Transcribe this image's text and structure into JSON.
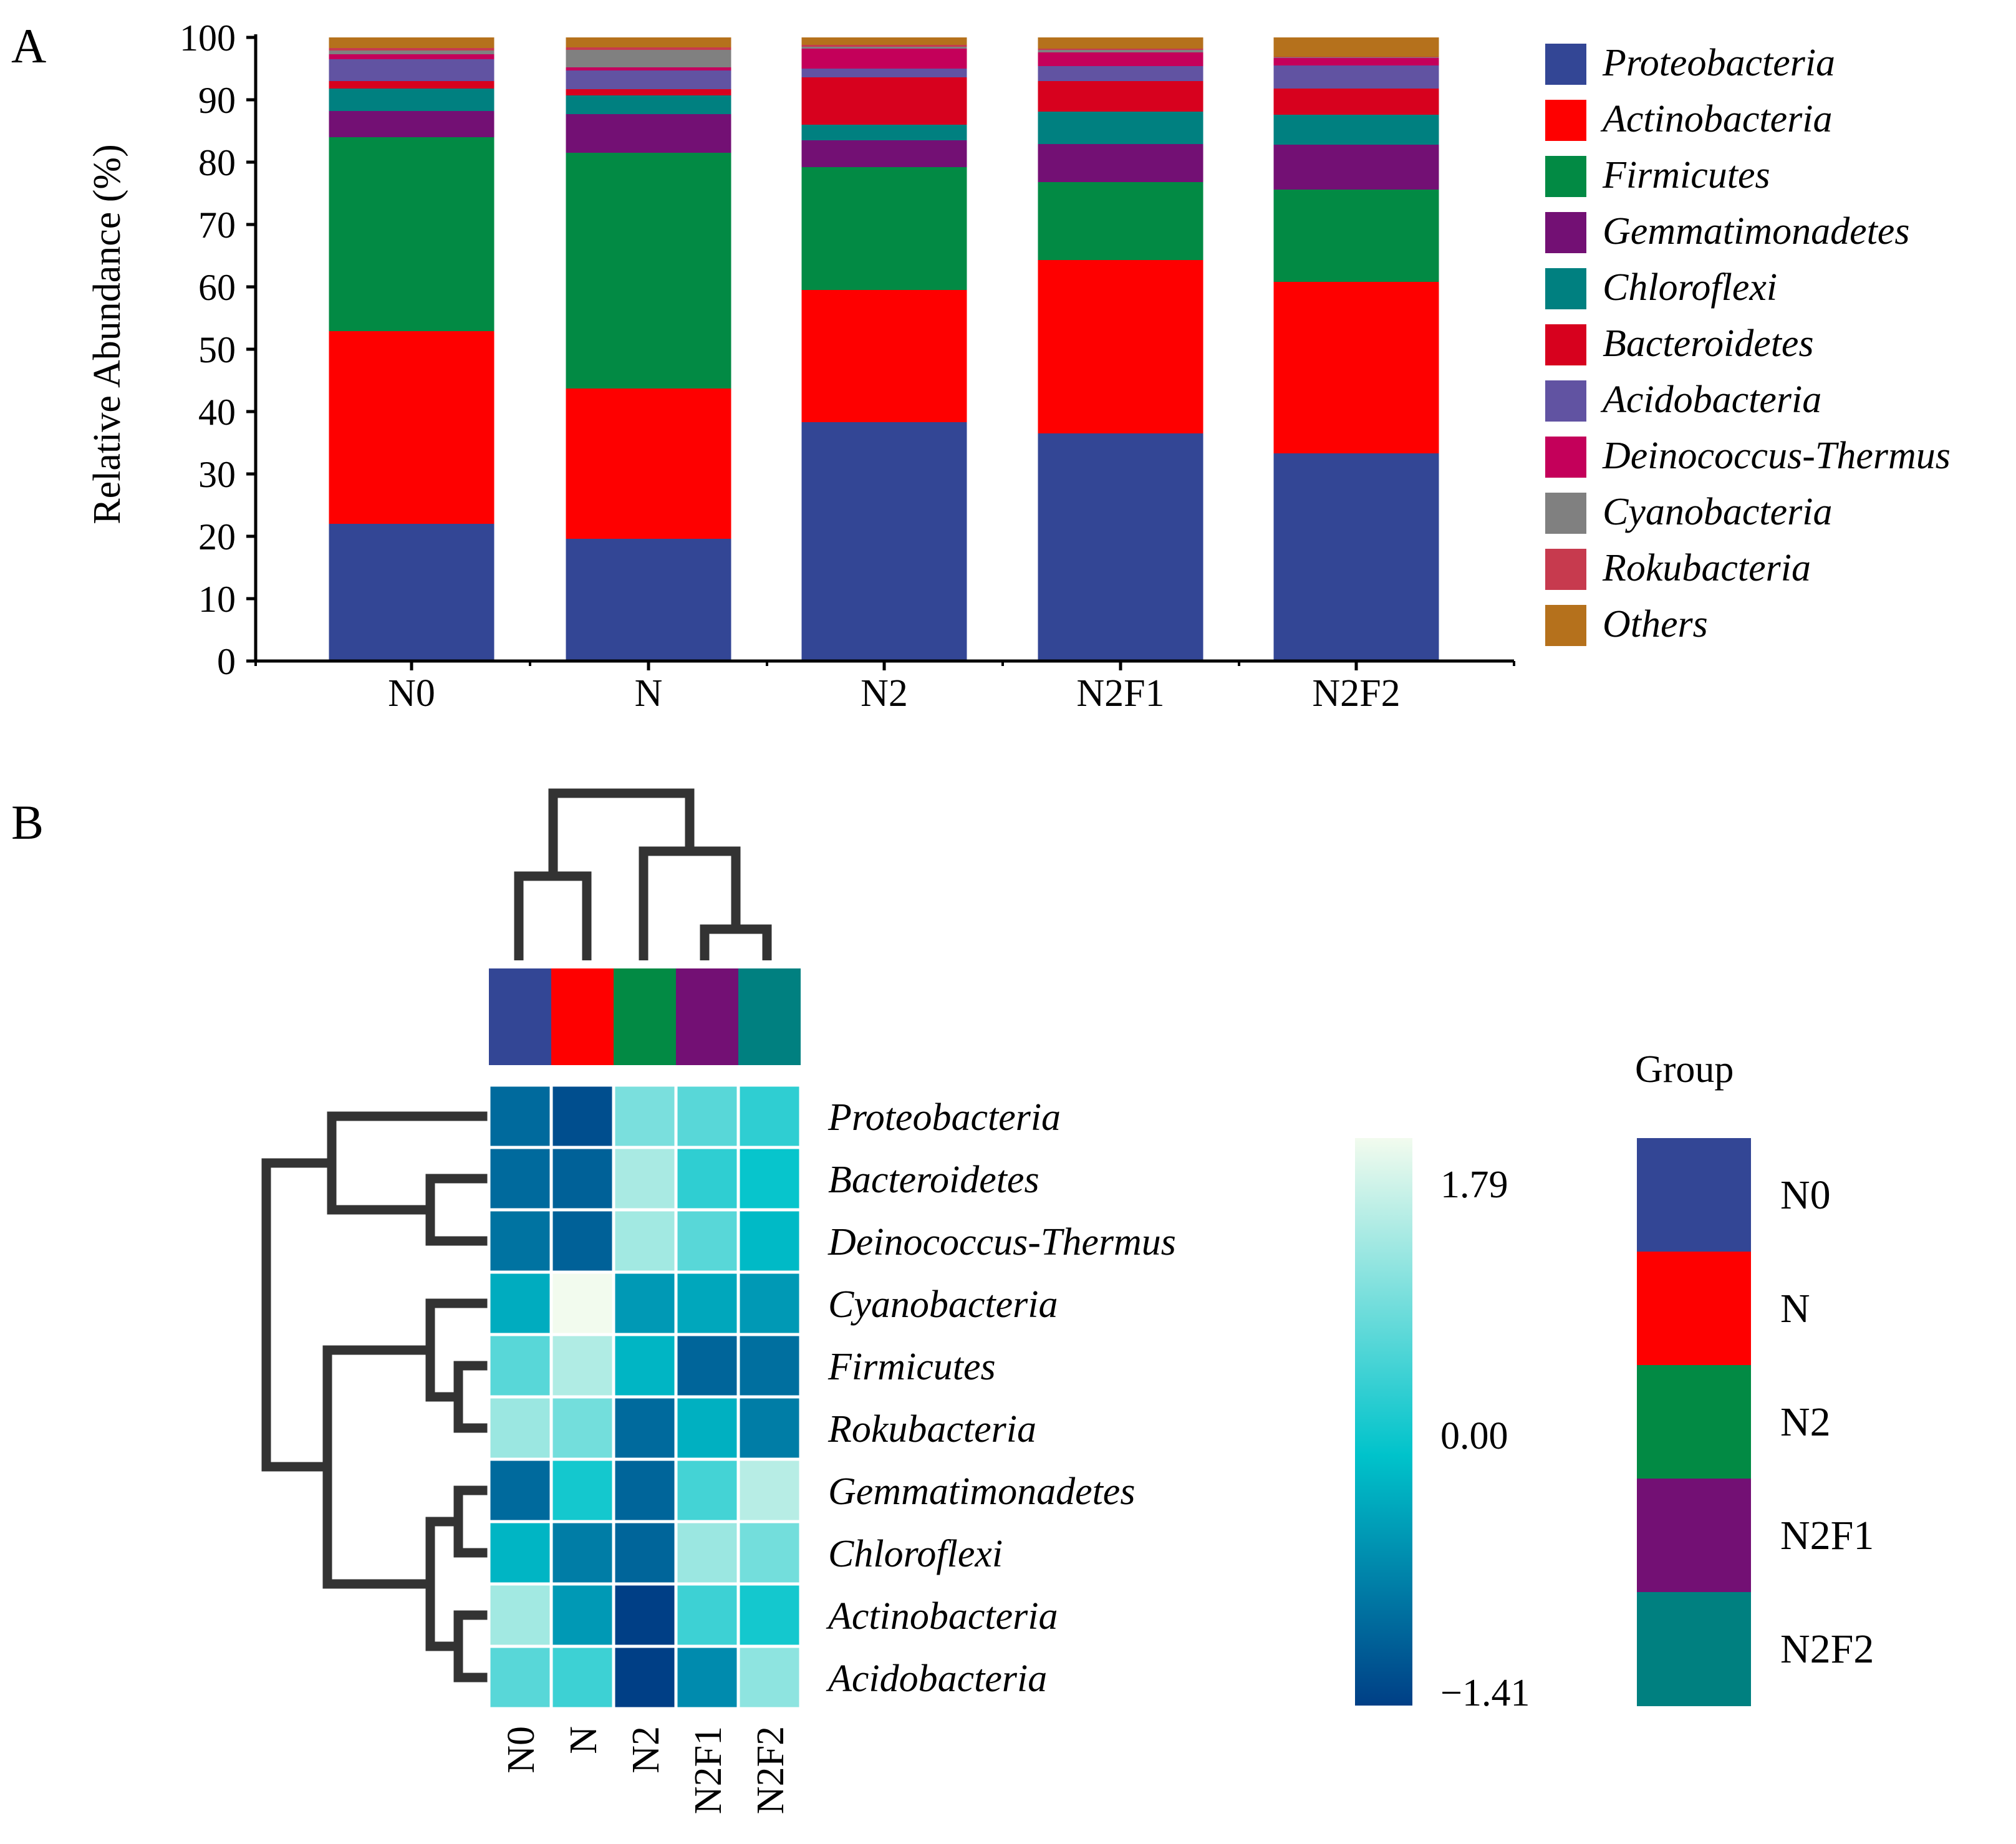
{
  "chart_data": [
    {
      "type": "bar",
      "stacked": true,
      "panel_label": "A",
      "ylabel": "Relative Abundance (%)",
      "ylim": [
        0,
        100
      ],
      "yticks": [
        "0",
        "10",
        "20",
        "30",
        "40",
        "50",
        "60",
        "70",
        "80",
        "90",
        "100"
      ],
      "categories": [
        "N0",
        "N",
        "N2",
        "N2F1",
        "N2F2"
      ],
      "legend_position": "right",
      "series": [
        {
          "name": "Proteobacteria",
          "color": "#334695",
          "values": [
            22,
            19.6,
            38.3,
            36.5,
            33.3
          ]
        },
        {
          "name": "Actinobacteria",
          "color": "#fe0000",
          "values": [
            30.9,
            24.1,
            21.2,
            27.8,
            27.5
          ]
        },
        {
          "name": "Firmicutes",
          "color": "#028a44",
          "values": [
            31.1,
            37.8,
            19.7,
            12.5,
            14.8
          ]
        },
        {
          "name": "Gemmatimonadetes",
          "color": "#731074",
          "values": [
            4.2,
            6.2,
            4.3,
            6.1,
            7.2
          ]
        },
        {
          "name": "Chloroflexi",
          "color": "#008080",
          "values": [
            3.6,
            3.0,
            2.5,
            5.2,
            4.8
          ]
        },
        {
          "name": "Bacteroidetes",
          "color": "#d7011e",
          "values": [
            1.2,
            1.0,
            7.6,
            4.9,
            4.2
          ]
        },
        {
          "name": "Acidobacteria",
          "color": "#6153a2",
          "values": [
            3.5,
            3.0,
            1.4,
            2.4,
            3.7
          ]
        },
        {
          "name": "Deinococcus-Thermus",
          "color": "#c4005a",
          "values": [
            0.8,
            0.5,
            3.2,
            2.2,
            1.2
          ]
        },
        {
          "name": "Cyanobacteria",
          "color": "#808080",
          "values": [
            0.6,
            2.8,
            0.3,
            0.4,
            0.1
          ]
        },
        {
          "name": "Rokubacteria",
          "color": "#c73a4e",
          "values": [
            0.4,
            0.4,
            0.3,
            0.2,
            0.1
          ]
        },
        {
          "name": "Others",
          "color": "#b5711c",
          "values": [
            1.7,
            1.6,
            1.2,
            1.8,
            3.1
          ]
        }
      ]
    },
    {
      "type": "heatmap",
      "panel_label": "B",
      "columns": [
        "N0",
        "N",
        "N2",
        "N2F1",
        "N2F2"
      ],
      "rows": [
        "Proteobacteria",
        "Bacteroidetes",
        "Deinococcus-Thermus",
        "Cyanobacteria",
        "Firmicutes",
        "Rokubacteria",
        "Gemmatimonadetes",
        "Chloroflexi",
        "Actinobacteria",
        "Acidobacteria"
      ],
      "values": [
        [
          -0.95,
          -1.25,
          0.9,
          0.65,
          0.35
        ],
        [
          -0.95,
          -1.05,
          1.25,
          0.35,
          0.05
        ],
        [
          -0.85,
          -1.05,
          1.2,
          0.65,
          -0.1
        ],
        [
          -0.25,
          1.79,
          -0.45,
          -0.3,
          -0.45
        ],
        [
          0.65,
          1.3,
          -0.15,
          -1.0,
          -0.9
        ],
        [
          1.15,
          0.85,
          -0.95,
          -0.2,
          -0.75
        ],
        [
          -0.95,
          0.15,
          -1.0,
          0.5,
          1.35
        ],
        [
          -0.15,
          -0.75,
          -1.0,
          1.15,
          0.85
        ],
        [
          1.2,
          -0.45,
          -1.41,
          0.45,
          0.15
        ],
        [
          0.65,
          0.45,
          -1.41,
          -0.6,
          1.05
        ]
      ],
      "colorbar": {
        "min_label": "−1.41",
        "mid_label": "0.00",
        "max_label": "1.79",
        "min": -1.41,
        "mid": 0.0,
        "max": 1.79,
        "colors": [
          "#003f86",
          "#00c3cb",
          "#f2fbee"
        ]
      },
      "group_legend": {
        "title": "Group",
        "items": [
          {
            "name": "N0",
            "color": "#334695"
          },
          {
            "name": "N",
            "color": "#fe0000"
          },
          {
            "name": "N2",
            "color": "#028a44"
          },
          {
            "name": "N2F1",
            "color": "#731074"
          },
          {
            "name": "N2F2",
            "color": "#008080"
          }
        ]
      }
    }
  ]
}
